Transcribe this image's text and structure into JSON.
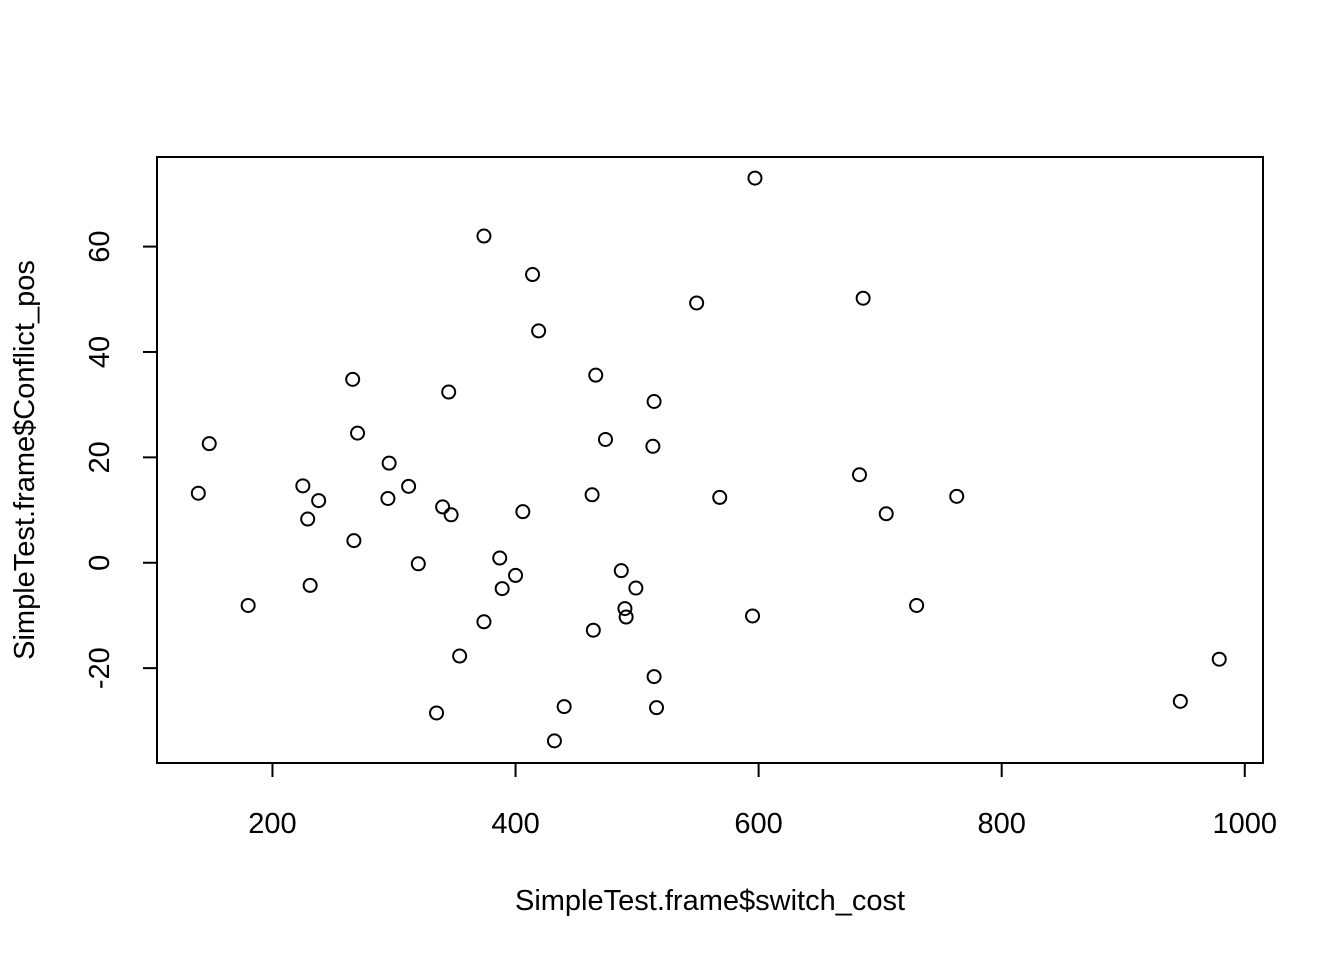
{
  "chart_data": {
    "type": "scatter",
    "title": "",
    "xlabel": "SimpleTest.frame$switch_cost",
    "ylabel": "SimpleTest.frame$Conflict_pos",
    "xlim": [
      105,
      1015
    ],
    "ylim": [
      -38,
      77
    ],
    "xticks": [
      200,
      400,
      600,
      800,
      1000
    ],
    "yticks": [
      -20,
      0,
      20,
      40,
      60
    ],
    "grid": false,
    "legend": "none",
    "points": [
      {
        "x": 597,
        "y": 73
      },
      {
        "x": 374,
        "y": 62
      },
      {
        "x": 414,
        "y": 54.7
      },
      {
        "x": 549,
        "y": 49.3
      },
      {
        "x": 686,
        "y": 50.2
      },
      {
        "x": 419,
        "y": 44
      },
      {
        "x": 266,
        "y": 34.8
      },
      {
        "x": 466,
        "y": 35.6
      },
      {
        "x": 345,
        "y": 32.4
      },
      {
        "x": 514,
        "y": 30.6
      },
      {
        "x": 270,
        "y": 24.6
      },
      {
        "x": 148,
        "y": 22.6
      },
      {
        "x": 474,
        "y": 23.4
      },
      {
        "x": 513,
        "y": 22.1
      },
      {
        "x": 296,
        "y": 18.9
      },
      {
        "x": 683,
        "y": 16.7
      },
      {
        "x": 225,
        "y": 14.6
      },
      {
        "x": 312,
        "y": 14.5
      },
      {
        "x": 139,
        "y": 13.2
      },
      {
        "x": 463,
        "y": 12.9
      },
      {
        "x": 763,
        "y": 12.6
      },
      {
        "x": 568,
        "y": 12.4
      },
      {
        "x": 295,
        "y": 12.2
      },
      {
        "x": 238,
        "y": 11.8
      },
      {
        "x": 340,
        "y": 10.6
      },
      {
        "x": 406,
        "y": 9.7
      },
      {
        "x": 705,
        "y": 9.3
      },
      {
        "x": 347,
        "y": 9.1
      },
      {
        "x": 229,
        "y": 8.3
      },
      {
        "x": 267,
        "y": 4.2
      },
      {
        "x": 387,
        "y": 0.9
      },
      {
        "x": 320,
        "y": -0.2
      },
      {
        "x": 487,
        "y": -1.5
      },
      {
        "x": 400,
        "y": -2.4
      },
      {
        "x": 231,
        "y": -4.3
      },
      {
        "x": 499,
        "y": -4.8
      },
      {
        "x": 389,
        "y": -4.9
      },
      {
        "x": 180,
        "y": -8.1
      },
      {
        "x": 730,
        "y": -8.1
      },
      {
        "x": 490,
        "y": -8.7
      },
      {
        "x": 491,
        "y": -10.3
      },
      {
        "x": 595,
        "y": -10.1
      },
      {
        "x": 374,
        "y": -11.2
      },
      {
        "x": 464,
        "y": -12.8
      },
      {
        "x": 354,
        "y": -17.7
      },
      {
        "x": 979,
        "y": -18.3
      },
      {
        "x": 514,
        "y": -21.6
      },
      {
        "x": 947,
        "y": -26.3
      },
      {
        "x": 440,
        "y": -27.3
      },
      {
        "x": 516,
        "y": -27.5
      },
      {
        "x": 335,
        "y": -28.5
      },
      {
        "x": 432,
        "y": -33.8
      }
    ]
  }
}
